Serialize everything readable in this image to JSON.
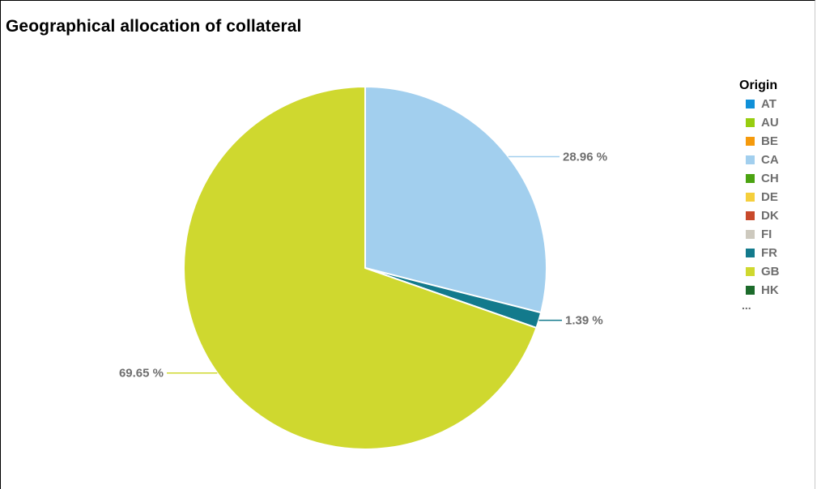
{
  "chart_data": {
    "type": "pie",
    "title": "Geographical allocation of collateral",
    "legend": {
      "title": "Origin",
      "position": "right",
      "items": [
        {
          "label": "AT",
          "color": "#1090d8"
        },
        {
          "label": "AU",
          "color": "#97cd10"
        },
        {
          "label": "BE",
          "color": "#f59a0c"
        },
        {
          "label": "CA",
          "color": "#a2cfee"
        },
        {
          "label": "CH",
          "color": "#4ba311"
        },
        {
          "label": "DE",
          "color": "#f5cf3c"
        },
        {
          "label": "DK",
          "color": "#c8492b"
        },
        {
          "label": "FI",
          "color": "#cdc9be"
        },
        {
          "label": "FR",
          "color": "#137a8c"
        },
        {
          "label": "GB",
          "color": "#cfd82f"
        },
        {
          "label": "HK",
          "color": "#1c6b2b"
        }
      ],
      "more": "..."
    },
    "slices": [
      {
        "label": "CA",
        "value": 28.96,
        "display": "28.96 %",
        "color": "#a2cfee"
      },
      {
        "label": "FR",
        "value": 1.39,
        "display": "1.39 %",
        "color": "#137a8c"
      },
      {
        "label": "GB",
        "value": 69.65,
        "display": "69.65 %",
        "color": "#cfd82f"
      }
    ]
  }
}
